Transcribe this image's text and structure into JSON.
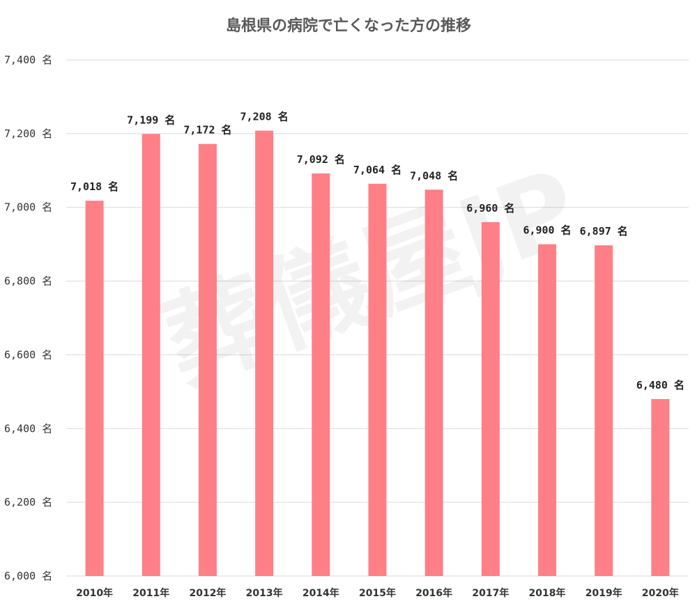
{
  "chart_data": {
    "type": "bar",
    "title": "島根県の病院で亡くなった方の推移",
    "watermark": "葬儀屋JP",
    "categories": [
      "2010年",
      "2011年",
      "2012年",
      "2013年",
      "2014年",
      "2015年",
      "2016年",
      "2017年",
      "2018年",
      "2019年",
      "2020年"
    ],
    "values": [
      7018,
      7199,
      7172,
      7208,
      7092,
      7064,
      7048,
      6960,
      6900,
      6897,
      6480
    ],
    "data_labels": [
      "7,018 名",
      "7,199 名",
      "7,172 名",
      "7,208 名",
      "7,092 名",
      "7,064 名",
      "7,048 名",
      "6,960 名",
      "6,900 名",
      "6,897 名",
      "6,480 名"
    ],
    "y_ticks": [
      6000,
      6200,
      6400,
      6600,
      6800,
      7000,
      7200,
      7400
    ],
    "y_tick_labels": [
      "6,000 名",
      "6,200 名",
      "6,400 名",
      "6,600 名",
      "6,800 名",
      "7,000 名",
      "7,200 名",
      "7,400 名"
    ],
    "ylim": [
      6000,
      7400
    ],
    "xlabel": "",
    "ylabel": "",
    "grid": true,
    "legend": "none",
    "bar_color": "#ff7f86"
  }
}
